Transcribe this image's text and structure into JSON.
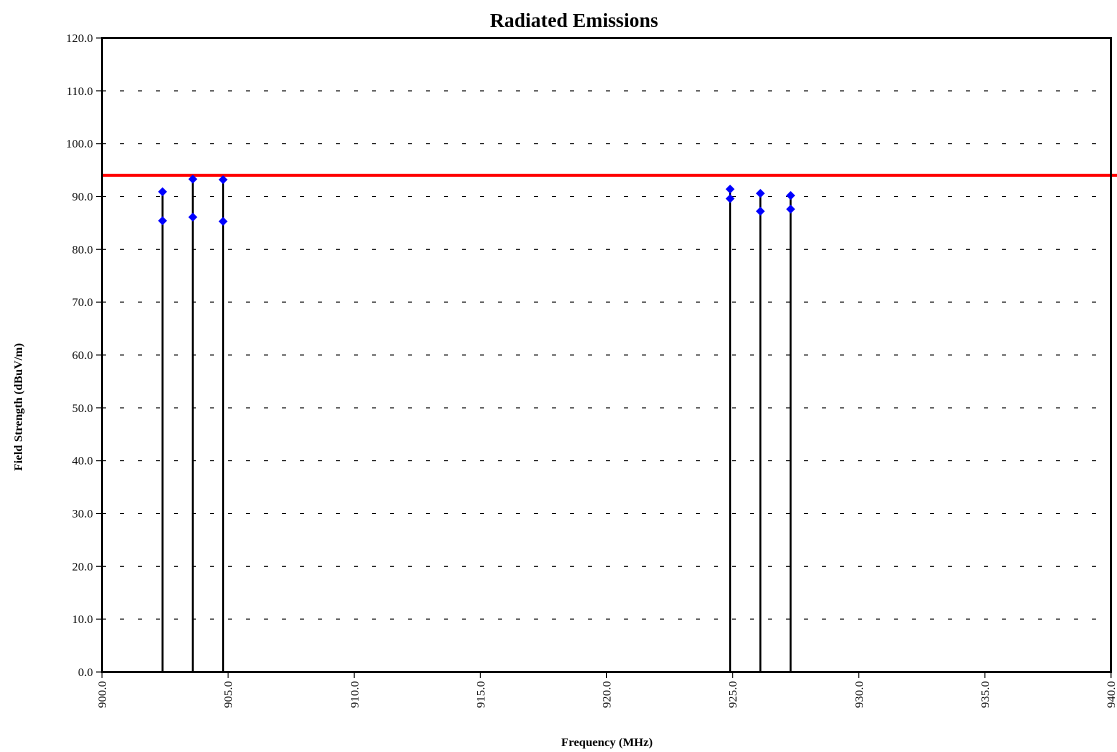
{
  "chart_data": {
    "type": "scatter",
    "title": "Radiated Emissions",
    "xlabel": "Frequency (MHz)",
    "ylabel": "Field Strength (dBuV/m)",
    "xlim": [
      900.0,
      940.0
    ],
    "ylim": [
      0.0,
      120.0
    ],
    "x_ticks": [
      "900.0",
      "905.0",
      "910.0",
      "915.0",
      "920.0",
      "925.0",
      "930.0",
      "935.0",
      "940.0"
    ],
    "y_ticks": [
      "0.0",
      "10.0",
      "20.0",
      "30.0",
      "40.0",
      "50.0",
      "60.0",
      "70.0",
      "80.0",
      "90.0",
      "100.0",
      "110.0",
      "120.0"
    ],
    "grid": "horizontal-dashed",
    "limit_line": {
      "value": 94.0,
      "color": "#ff0000"
    },
    "marker_color": "#0000ff",
    "stem_color": "#000000",
    "series": [
      {
        "points": [
          {
            "x": 902.4,
            "y": 90.9
          },
          {
            "x": 902.4,
            "y": 85.4
          },
          {
            "x": 903.6,
            "y": 93.3
          },
          {
            "x": 903.6,
            "y": 86.1
          },
          {
            "x": 904.8,
            "y": 93.2
          },
          {
            "x": 904.8,
            "y": 85.3
          },
          {
            "x": 924.9,
            "y": 91.4
          },
          {
            "x": 924.9,
            "y": 89.6
          },
          {
            "x": 926.1,
            "y": 90.6
          },
          {
            "x": 926.1,
            "y": 87.2
          },
          {
            "x": 927.3,
            "y": 90.2
          },
          {
            "x": 927.3,
            "y": 87.6
          }
        ]
      }
    ]
  }
}
